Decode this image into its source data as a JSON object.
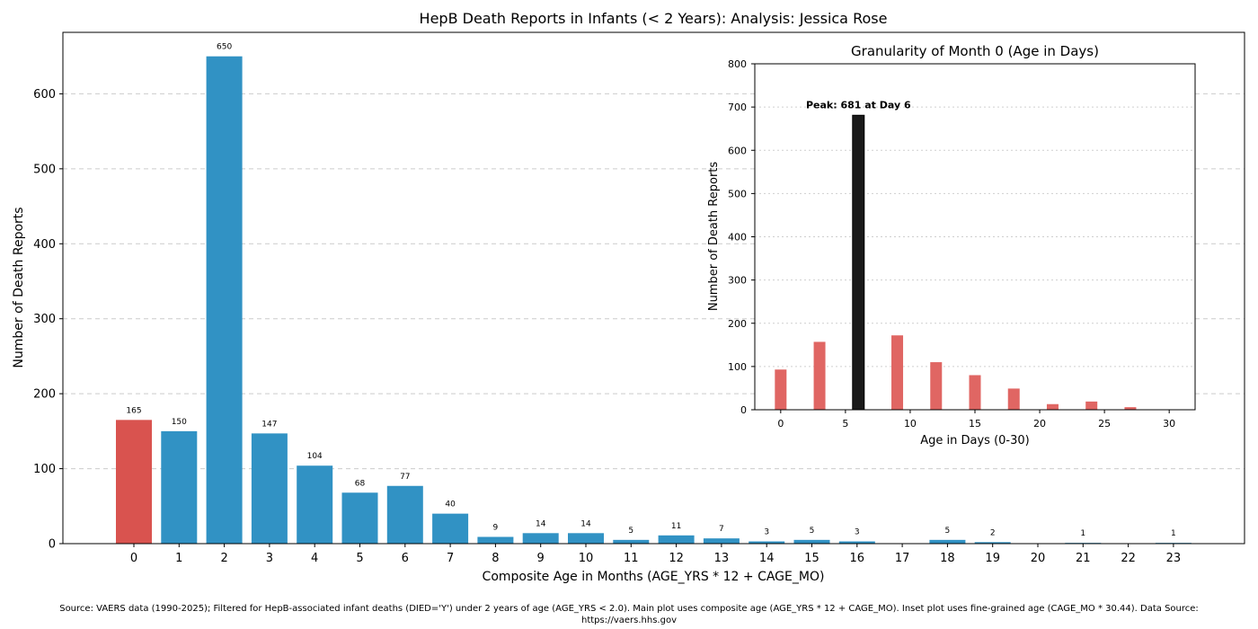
{
  "chart_data": [
    {
      "type": "bar",
      "title": "HepB Death Reports in Infants (< 2 Years): Analysis: Jessica Rose",
      "xlabel": "Composite Age in Months (AGE_YRS * 12 + CAGE_MO)",
      "ylabel": "Number of Death Reports",
      "categories": [
        "0",
        "1",
        "2",
        "3",
        "4",
        "5",
        "6",
        "7",
        "8",
        "9",
        "10",
        "11",
        "12",
        "13",
        "14",
        "15",
        "16",
        "17",
        "18",
        "19",
        "20",
        "21",
        "22",
        "23"
      ],
      "values": [
        165,
        150,
        650,
        147,
        104,
        68,
        77,
        40,
        9,
        14,
        14,
        5,
        11,
        7,
        3,
        5,
        3,
        0,
        5,
        2,
        0,
        1,
        0,
        1
      ],
      "data_labels": [
        "165",
        "150",
        "650",
        "147",
        "104",
        "68",
        "77",
        "40",
        "9",
        "14",
        "14",
        "5",
        "11",
        "7",
        "3",
        "5",
        "3",
        "",
        "5",
        "2",
        "",
        "1",
        "",
        "1"
      ],
      "highlight_index": 0,
      "colors": {
        "highlight": "#d9534f",
        "bar": "#3192c4"
      },
      "yticks": [
        0,
        100,
        200,
        300,
        400,
        500,
        600
      ],
      "ylim": [
        0,
        682
      ],
      "grid": "horizontal dashed"
    },
    {
      "type": "bar",
      "title": "Granularity of Month 0 (Age in Days)",
      "xlabel": "Age in Days (0-30)",
      "ylabel": "Number of Death Reports",
      "x": [
        0,
        3,
        6,
        9,
        12,
        15,
        18,
        21,
        24,
        27
      ],
      "values": [
        93,
        157,
        681,
        172,
        110,
        80,
        49,
        13,
        19,
        6
      ],
      "xticks": [
        0,
        5,
        10,
        15,
        20,
        25,
        30
      ],
      "yticks": [
        0,
        100,
        200,
        300,
        400,
        500,
        600,
        700,
        800
      ],
      "xlim": [
        -2,
        32
      ],
      "ylim": [
        0,
        800
      ],
      "peak_annotation": "Peak: 681 at Day 6",
      "colors": {
        "bar": "#e06663",
        "peak": "#1a1a1a"
      },
      "grid": "horizontal dotted"
    }
  ],
  "footer": {
    "line1": "Source: VAERS data (1990-2025); Filtered for HepB-associated infant deaths (DIED='Y') under 2 years of age (AGE_YRS < 2.0). Main plot uses composite age (AGE_YRS * 12 + CAGE_MO). Inset plot uses fine-grained age (CAGE_MO * 30.44). Data Source:",
    "line2": "https://vaers.hhs.gov"
  }
}
